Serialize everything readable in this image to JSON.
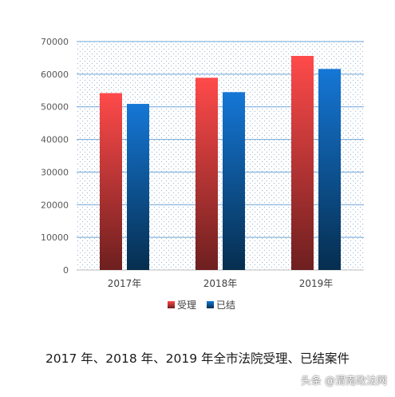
{
  "chart_data": {
    "type": "bar",
    "categories": [
      "2017年",
      "2018年",
      "2019年"
    ],
    "series": [
      {
        "name": "受理",
        "values": [
          54200,
          58900,
          65600
        ],
        "color_top": "#ff4a4a",
        "color_bottom": "#6e1f1f"
      },
      {
        "name": "已结",
        "values": [
          50900,
          54500,
          61600
        ],
        "color_top": "#1577d6",
        "color_bottom": "#062e4f"
      }
    ],
    "yticks": [
      0,
      10000,
      20000,
      30000,
      40000,
      50000,
      60000,
      70000
    ],
    "ylim": [
      0,
      70000
    ],
    "grid": true,
    "legend": "bottom",
    "gridline_color": "#6ea6d8",
    "plot_pattern_color": "#9ab8d4"
  },
  "caption": "2017 年、2018 年、2019 年全市法院受理、已结案件",
  "watermark": "头条 @渭南政法网"
}
